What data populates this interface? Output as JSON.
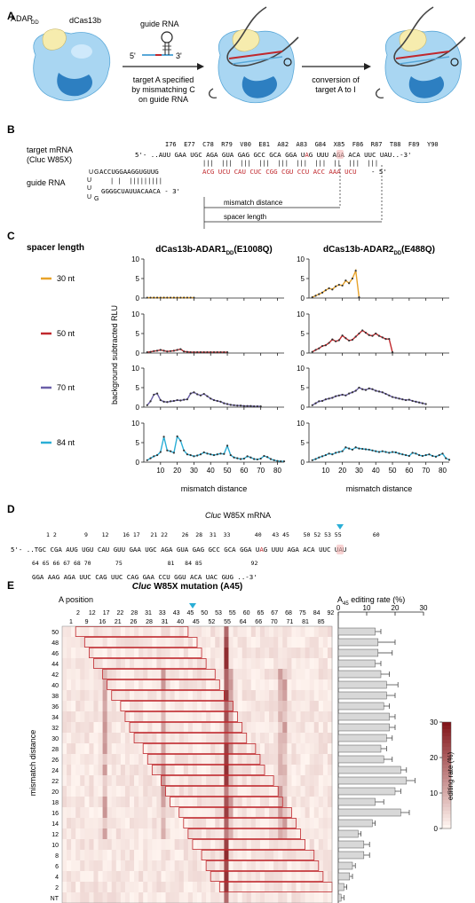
{
  "panelA": {
    "letter": "A",
    "adar_label": "ADAR",
    "adar_sub": "DD",
    "dcas_label": "dCas13b",
    "guide_label": "guide RNA",
    "five": "5'",
    "three": "3'",
    "step1": [
      "target A specified",
      "by mismatching C",
      "on guide RNA"
    ],
    "step2": [
      "conversion of",
      "target A to I"
    ]
  },
  "panelB": {
    "letter": "B",
    "target_label": [
      "target mRNA",
      "(Cluc W85X)"
    ],
    "guide_label": "guide RNA",
    "codons": "I76  E77  C78  R79  V80  E81  A82  A83  G84  X85  F86  R87  T88  F89  Y90",
    "target_seq_a": "5'- ..AUU GAA UGC AGA GUA GAG GCC GCA GGA U",
    "target_seq_b": "G UUU AGA ACA UUC UAU..-3'",
    "target_A": "A",
    "pairs": "|||  |||  |||  |||  |||  |||  |||  ||  |||  |||",
    "guide_top": "ACCUGGAAGGUGUUG",
    "guide_red": "ACG UCU CAU CUC CGG CGU CCU ACC AAA UCU",
    "guide_end": "- 5'",
    "guide_pairs": "| |  |||||||||",
    "guide_bottom": "GGGGCUAUUACAACA - 3'",
    "loop_u": "U",
    "loop_g": "G",
    "mismatch_label": "mismatch distance",
    "spacer_label": "spacer length"
  },
  "panelC": {
    "letter": "C",
    "legend_title": "spacer length",
    "legend": [
      {
        "label": "30 nt",
        "color": "#e8a32a"
      },
      {
        "label": "50 nt",
        "color": "#c0282d"
      },
      {
        "label": "70 nt",
        "color": "#6b5fa8"
      },
      {
        "label": "84 nt",
        "color": "#2aaed6"
      }
    ],
    "ylabel": "background subtracted RLU",
    "xlabel": "mismatch distance"
  },
  "chart_data": [
    {
      "type": "line",
      "title": "dCas13b-ADAR1DD(E1008Q)",
      "xlabel": "mismatch distance",
      "ylabel": "background subtracted RLU",
      "xlim": [
        0,
        84
      ],
      "ylim": [
        0,
        10
      ],
      "xticks": [
        10,
        20,
        30,
        40,
        50,
        60,
        70,
        80
      ],
      "yticks": [
        0,
        5,
        10
      ],
      "series": [
        {
          "name": "30 nt",
          "x": [
            2,
            4,
            6,
            8,
            10,
            12,
            14,
            16,
            18,
            20,
            22,
            24,
            26,
            28,
            30
          ],
          "values": [
            0.1,
            0.1,
            0.1,
            0.1,
            0.1,
            0.1,
            0.1,
            0.1,
            0.1,
            0.1,
            0.1,
            0.1,
            0.1,
            0.1,
            0.1
          ]
        },
        {
          "name": "50 nt",
          "x": [
            2,
            4,
            6,
            8,
            10,
            12,
            14,
            16,
            18,
            20,
            22,
            24,
            26,
            28,
            30,
            32,
            34,
            36,
            38,
            40,
            42,
            44,
            46,
            48,
            50
          ],
          "values": [
            0.2,
            0.3,
            0.5,
            0.6,
            0.8,
            0.6,
            0.4,
            0.5,
            0.6,
            0.8,
            1.0,
            0.4,
            0.3,
            0.2,
            0.2,
            0.2,
            0.2,
            0.2,
            0.2,
            0.2,
            0.2,
            0.2,
            0.2,
            0.2,
            0.2
          ]
        },
        {
          "name": "70 nt",
          "x": [
            2,
            4,
            6,
            8,
            10,
            12,
            14,
            16,
            18,
            20,
            22,
            24,
            26,
            28,
            30,
            32,
            34,
            36,
            38,
            40,
            42,
            44,
            46,
            48,
            50,
            52,
            54,
            56,
            58,
            60,
            62,
            64,
            66,
            68,
            70
          ],
          "values": [
            0.5,
            1.5,
            3.2,
            3.5,
            1.8,
            1.4,
            1.3,
            1.5,
            1.6,
            1.8,
            1.7,
            1.9,
            2.0,
            3.5,
            3.8,
            3.3,
            3.0,
            3.4,
            2.8,
            2.2,
            1.8,
            1.6,
            1.4,
            1.0,
            0.8,
            0.6,
            0.5,
            0.4,
            0.4,
            0.3,
            0.3,
            0.3,
            0.2,
            0.2,
            0.2
          ]
        },
        {
          "name": "84 nt",
          "x": [
            2,
            4,
            6,
            8,
            10,
            12,
            14,
            16,
            18,
            20,
            22,
            24,
            26,
            28,
            30,
            32,
            34,
            36,
            38,
            40,
            42,
            44,
            46,
            48,
            50,
            52,
            54,
            56,
            58,
            60,
            62,
            64,
            66,
            68,
            70,
            72,
            74,
            76,
            78,
            80,
            82,
            84
          ],
          "values": [
            0.5,
            1.0,
            1.5,
            1.8,
            2.6,
            6.5,
            3.0,
            2.8,
            2.4,
            6.6,
            5.5,
            3.0,
            2.0,
            1.8,
            1.5,
            1.7,
            2.0,
            2.5,
            2.2,
            2.0,
            1.8,
            2.0,
            2.2,
            2.1,
            4.2,
            1.8,
            1.2,
            1.0,
            0.8,
            0.9,
            1.5,
            1.2,
            0.8,
            0.7,
            0.9,
            1.6,
            1.3,
            0.8,
            0.5,
            0.3,
            0.2,
            0.2
          ]
        }
      ]
    },
    {
      "type": "line",
      "title": "dCas13b-ADAR2DD(E488Q)",
      "xlabel": "mismatch distance",
      "ylabel": "background subtracted RLU",
      "xlim": [
        0,
        84
      ],
      "ylim": [
        0,
        10
      ],
      "xticks": [
        10,
        20,
        30,
        40,
        50,
        60,
        70,
        80
      ],
      "yticks": [
        0,
        5,
        10
      ],
      "series": [
        {
          "name": "30 nt",
          "x": [
            2,
            4,
            6,
            8,
            10,
            12,
            14,
            16,
            18,
            20,
            22,
            24,
            26,
            28,
            30
          ],
          "values": [
            0.2,
            0.6,
            1.0,
            1.4,
            2.0,
            2.5,
            2.2,
            3.0,
            3.4,
            3.2,
            4.5,
            3.8,
            5.0,
            7.0,
            0.2
          ]
        },
        {
          "name": "50 nt",
          "x": [
            2,
            4,
            6,
            8,
            10,
            12,
            14,
            16,
            18,
            20,
            22,
            24,
            26,
            28,
            30,
            32,
            34,
            36,
            38,
            40,
            42,
            44,
            46,
            48,
            50
          ],
          "values": [
            0.3,
            0.8,
            1.2,
            1.8,
            2.0,
            2.6,
            3.5,
            3.0,
            3.3,
            4.5,
            3.8,
            3.2,
            3.4,
            4.2,
            5.0,
            5.8,
            5.2,
            4.6,
            4.4,
            5.0,
            4.4,
            4.0,
            3.6,
            3.6,
            0.2
          ]
        },
        {
          "name": "70 nt",
          "x": [
            2,
            4,
            6,
            8,
            10,
            12,
            14,
            16,
            18,
            20,
            22,
            24,
            26,
            28,
            30,
            32,
            34,
            36,
            38,
            40,
            42,
            44,
            46,
            48,
            50,
            52,
            54,
            56,
            58,
            60,
            62,
            64,
            66,
            68,
            70
          ],
          "values": [
            0.5,
            1.0,
            1.5,
            1.6,
            2.0,
            2.2,
            2.4,
            2.8,
            3.0,
            3.2,
            3.0,
            3.5,
            3.8,
            4.2,
            5.0,
            4.6,
            4.4,
            4.8,
            4.6,
            4.2,
            4.0,
            3.8,
            3.4,
            3.0,
            2.6,
            2.4,
            2.2,
            2.0,
            1.8,
            1.9,
            1.6,
            1.4,
            1.2,
            1.0,
            0.8
          ]
        },
        {
          "name": "84 nt",
          "x": [
            2,
            4,
            6,
            8,
            10,
            12,
            14,
            16,
            18,
            20,
            22,
            24,
            26,
            28,
            30,
            32,
            34,
            36,
            38,
            40,
            42,
            44,
            46,
            48,
            50,
            52,
            54,
            56,
            58,
            60,
            62,
            64,
            66,
            68,
            70,
            72,
            74,
            76,
            78,
            80,
            82,
            84
          ],
          "values": [
            0.5,
            0.8,
            1.2,
            1.5,
            1.8,
            2.2,
            2.0,
            2.4,
            2.6,
            2.8,
            3.8,
            3.5,
            3.2,
            3.8,
            3.5,
            3.4,
            3.3,
            3.2,
            3.0,
            2.8,
            2.6,
            2.8,
            2.6,
            2.4,
            2.6,
            2.5,
            2.2,
            2.0,
            1.8,
            1.6,
            2.4,
            2.2,
            1.8,
            1.6,
            1.8,
            2.0,
            1.6,
            1.4,
            1.8,
            2.2,
            1.0,
            0.6
          ]
        }
      ]
    },
    {
      "type": "heatmap",
      "title": "Cluc W85X mutation (A45)",
      "xlabel": "A position",
      "ylabel": "mismatch distance",
      "x_top": [
        "2",
        "12",
        "17",
        "22",
        "28",
        "31",
        "33",
        "43",
        "45",
        "50",
        "53",
        "55",
        "60",
        "65",
        "67",
        "68",
        "75",
        "84",
        "92"
      ],
      "x_bottom": [
        "1",
        "9",
        "16",
        "21",
        "26",
        "28",
        "31",
        "40",
        "45",
        "52",
        "55",
        "64",
        "66",
        "70",
        "71",
        "81",
        "85"
      ],
      "y": [
        "50",
        "48",
        "46",
        "44",
        "42",
        "40",
        "38",
        "36",
        "34",
        "32",
        "30",
        "28",
        "26",
        "24",
        "22",
        "20",
        "18",
        "16",
        "14",
        "12",
        "10",
        "8",
        "6",
        "4",
        "2",
        "NT"
      ],
      "colorbar_label": "editing rate (%)",
      "colorbar_ticks": [
        "0",
        "10",
        "20",
        "30"
      ],
      "colorbar_range": [
        0,
        30
      ]
    },
    {
      "type": "bar",
      "title": "A45 editing rate (%)",
      "xticks": [
        "0",
        "10",
        "20",
        "30"
      ],
      "xlim": [
        0,
        30
      ],
      "categories": [
        "50",
        "48",
        "46",
        "44",
        "42",
        "40",
        "38",
        "36",
        "34",
        "32",
        "30",
        "28",
        "26",
        "24",
        "22",
        "20",
        "18",
        "16",
        "14",
        "12",
        "10",
        "8",
        "6",
        "4",
        "2",
        "NT"
      ],
      "values": [
        13,
        14,
        14,
        13,
        15,
        17,
        17,
        16,
        18,
        18,
        17,
        15,
        16,
        22,
        24,
        20,
        13,
        22,
        12,
        7,
        9,
        9,
        5,
        4,
        2,
        1
      ],
      "errors": [
        2,
        6,
        5,
        2,
        3,
        4,
        3,
        2,
        2,
        2,
        2,
        2,
        3,
        2,
        3,
        2,
        3,
        3,
        1,
        1,
        2,
        2,
        1,
        1,
        1,
        1
      ]
    }
  ],
  "panelD": {
    "letter": "D",
    "title_italic": "Cluc",
    "title_rest": " W85X mRNA",
    "row1_nums": "1 2        9    12    16 17   21 22    26  28  31  33       40   43 45    50 52 53 55         60",
    "row1_seq_a": "5'- ..TGC CGA AUG UGU CAU GUU GAA UGC AGA GUA GAG GCC GCA GGA U",
    "row1_seq_b": "G UUU AGA ACA UUC UAU",
    "row1_A": "A",
    "row2_nums": "64 65 66 67 68 70       75             81   84 85              92",
    "row2_seq": "GGA AAG AGA UUC CAG UUC CAG GAA CCU GGU ACA UAC GUG ..-3'"
  },
  "panelE": {
    "letter": "E",
    "title_italic": "Cluc",
    "title_rest": " W85X mutation (A45)",
    "a_position": "A position",
    "bar_title_a": "A",
    "bar_title_sub": "45",
    "bar_title_rest": " editing rate (%)",
    "ylabel": "mismatch distance",
    "colorbar_label": "editing rate (%)"
  },
  "colors": {
    "red": "#c0282d",
    "cyan": "#2aaed6",
    "gray_bar": "#d8d8d8"
  }
}
